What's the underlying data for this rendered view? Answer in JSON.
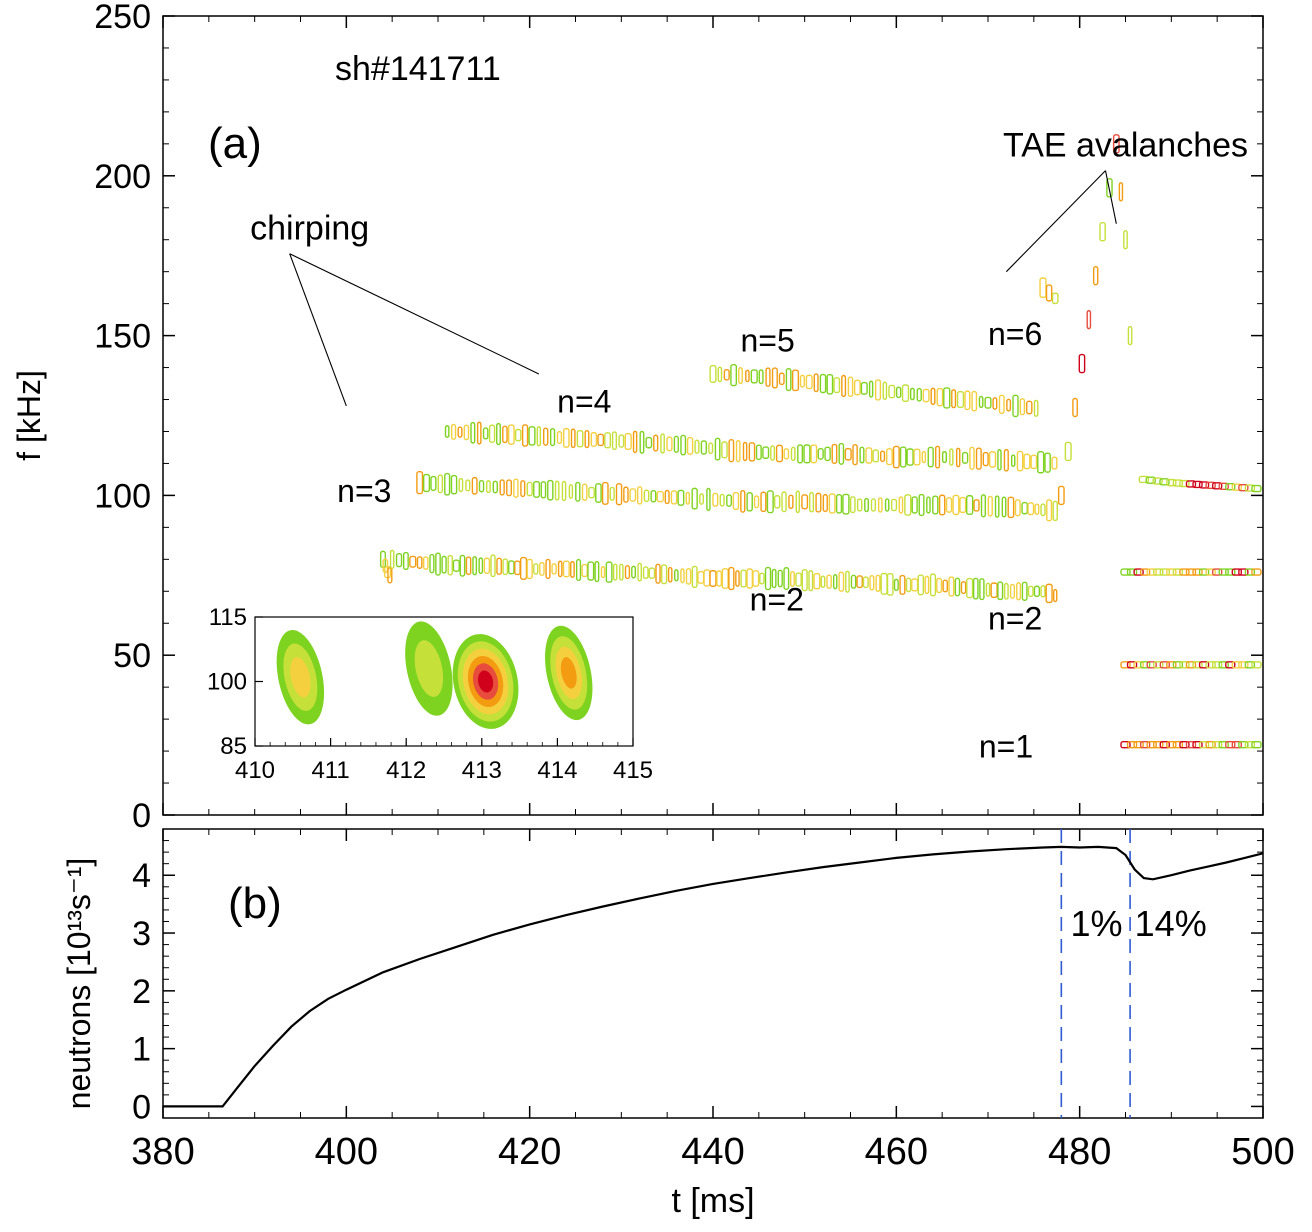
{
  "chart_data": [
    {
      "panel_label": "(a)",
      "type": "heatmap",
      "shot_label": "sh#141711",
      "xlabel": "",
      "ylabel": "f [kHz]",
      "xlim": [
        380,
        500
      ],
      "ylim": [
        0,
        250
      ],
      "y_ticks": [
        "0",
        "50",
        "100",
        "150",
        "200",
        "250"
      ],
      "colormap": [
        "#7ed321",
        "#c6e03a",
        "#f4d03f",
        "#f39c12",
        "#e74c3c",
        "#d0021b"
      ],
      "annotations": [
        {
          "text": "chirping",
          "x": 396,
          "y": 180,
          "targets": [
            [
              400,
              128
            ],
            [
              421,
              138
            ]
          ]
        },
        {
          "text": "TAE avalanches",
          "x": 485,
          "y": 206,
          "targets": [
            [
              472,
              170
            ],
            [
              484,
              185
            ]
          ]
        },
        {
          "text": "n=3",
          "x": 399,
          "y": 98
        },
        {
          "text": "n=4",
          "x": 423,
          "y": 126
        },
        {
          "text": "n=5",
          "x": 443,
          "y": 145
        },
        {
          "text": "n=6",
          "x": 470,
          "y": 147
        },
        {
          "text": "n=2",
          "x": 444,
          "y": 64
        },
        {
          "text": "n=2",
          "x": 470,
          "y": 58
        },
        {
          "text": "n=1",
          "x": 469,
          "y": 18
        }
      ],
      "series": [
        {
          "mode": "n=3",
          "x": [
            404,
            404.5,
            405
          ],
          "y": [
            80,
            76,
            74
          ]
        },
        {
          "mode": "n=2",
          "x": [
            405,
            408,
            412,
            416,
            420,
            424,
            428,
            432,
            436,
            440,
            444,
            448,
            452,
            456,
            460,
            464,
            468,
            472,
            476,
            478
          ],
          "y": [
            80,
            79,
            78,
            78,
            77,
            77,
            76,
            76,
            75,
            74,
            74,
            74,
            73,
            73,
            72,
            72,
            71,
            70,
            70,
            68
          ]
        },
        {
          "mode": "n=3 band",
          "x": [
            408,
            414,
            420,
            426,
            432,
            438,
            444,
            450,
            456,
            462,
            468,
            474,
            478
          ],
          "y": [
            104,
            103,
            102,
            101,
            100,
            99,
            98,
            98,
            97,
            97,
            97,
            96,
            95
          ]
        },
        {
          "mode": "n=4",
          "x": [
            411,
            418,
            424,
            430,
            436,
            442,
            448,
            454,
            460,
            466,
            472,
            478
          ],
          "y": [
            120,
            119,
            118,
            117,
            116,
            114,
            113,
            113,
            112,
            112,
            111,
            110
          ]
        },
        {
          "mode": "n=5",
          "x": [
            440,
            446,
            452,
            458,
            464,
            470,
            476
          ],
          "y": [
            138,
            137,
            135,
            133,
            131,
            129,
            127
          ]
        },
        {
          "mode": "n=6",
          "x": [
            476,
            478
          ],
          "y": [
            165,
            160
          ]
        },
        {
          "mode": "avalanche",
          "x": [
            478,
            484,
            485,
            486
          ],
          "y": [
            100,
            210,
            180,
            120
          ]
        },
        {
          "mode": "n=1 late",
          "x": [
            485,
            490,
            495,
            500
          ],
          "y": [
            22,
            22,
            22,
            22
          ]
        },
        {
          "mode": "n=2 late",
          "x": [
            485,
            490,
            495,
            500
          ],
          "y": [
            47,
            47,
            47,
            47
          ]
        },
        {
          "mode": "n=3 late",
          "x": [
            485,
            490,
            495,
            500
          ],
          "y": [
            76,
            76,
            76,
            76
          ]
        },
        {
          "mode": "late 105",
          "x": [
            487,
            490,
            495,
            500
          ],
          "y": [
            105,
            104,
            103,
            102
          ]
        }
      ],
      "inset": {
        "type": "heatmap",
        "xlim": [
          410,
          415
        ],
        "ylim": [
          85,
          115
        ],
        "x_ticks": [
          "410",
          "411",
          "412",
          "413",
          "414",
          "415"
        ],
        "y_ticks": [
          "85",
          "100",
          "115"
        ],
        "blobs": [
          {
            "x": 410.6,
            "y": 101,
            "intensity": 0.55
          },
          {
            "x": 412.3,
            "y": 103,
            "intensity": 0.35
          },
          {
            "x": 413.05,
            "y": 100,
            "intensity": 1.0
          },
          {
            "x": 414.15,
            "y": 102,
            "intensity": 0.6
          }
        ]
      }
    },
    {
      "panel_label": "(b)",
      "type": "line",
      "xlabel": "t [ms]",
      "ylabel": "neutrons [10¹³s⁻¹]",
      "xlim": [
        380,
        500
      ],
      "ylim": [
        -0.2,
        4.8
      ],
      "x_ticks": [
        "380",
        "400",
        "420",
        "440",
        "460",
        "480",
        "500"
      ],
      "y_ticks": [
        "0",
        "1",
        "2",
        "3",
        "4"
      ],
      "x": [
        380,
        384,
        386.5,
        388,
        390,
        392,
        394,
        396,
        398,
        400,
        404,
        408,
        412,
        416,
        420,
        424,
        428,
        432,
        436,
        440,
        444,
        448,
        452,
        456,
        460,
        464,
        468,
        472,
        476,
        478,
        480,
        482,
        484,
        485,
        486,
        487,
        488,
        490,
        492,
        494,
        496,
        498,
        500
      ],
      "y": [
        0.0,
        0.0,
        0.0,
        0.3,
        0.7,
        1.05,
        1.38,
        1.65,
        1.86,
        2.02,
        2.32,
        2.55,
        2.76,
        2.97,
        3.15,
        3.31,
        3.46,
        3.6,
        3.73,
        3.85,
        3.95,
        4.05,
        4.14,
        4.22,
        4.3,
        4.36,
        4.41,
        4.45,
        4.48,
        4.49,
        4.48,
        4.49,
        4.47,
        4.35,
        4.1,
        3.95,
        3.93,
        4.0,
        4.08,
        4.15,
        4.22,
        4.3,
        4.38
      ],
      "vlines": [
        478,
        485.5
      ],
      "vline_color": "#2f5bd3",
      "annotations": [
        {
          "text": "1%",
          "x": 479,
          "y": 2.95
        },
        {
          "text": "14%",
          "x": 486,
          "y": 2.95
        }
      ]
    }
  ]
}
